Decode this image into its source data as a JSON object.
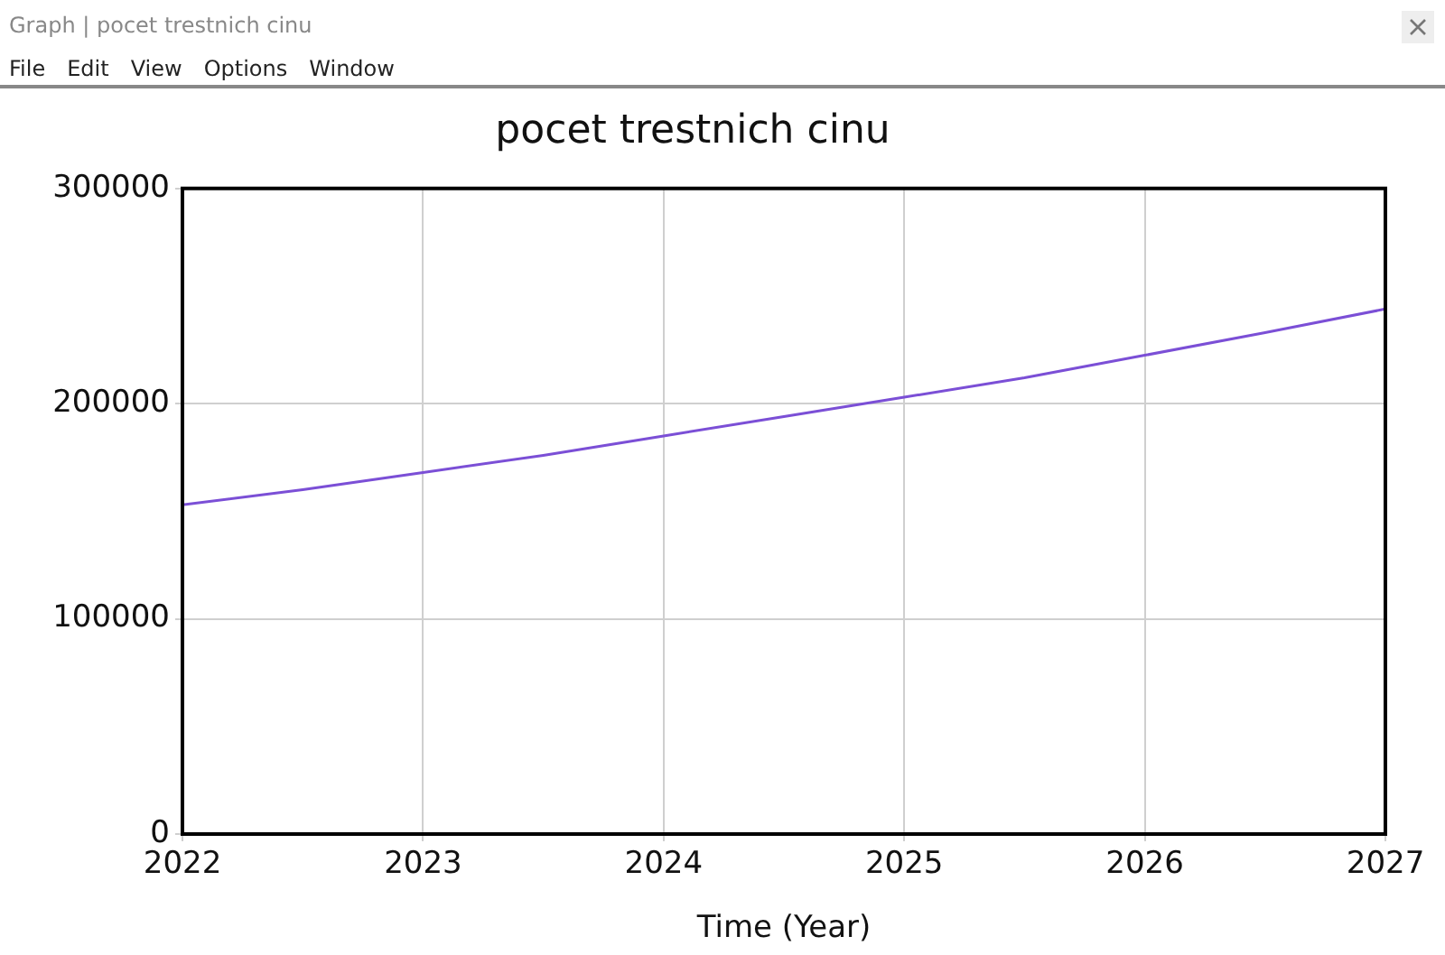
{
  "chart_data": {
    "type": "line",
    "title": "pocet trestnich cinu",
    "xlabel": "Time (Year)",
    "annotations": [
      "Graph | pocet trestnich cinu",
      "File",
      "Edit",
      "View",
      "Options",
      "Window"
    ],
    "x": [
      2022,
      2022.5,
      2023,
      2023.5,
      2024,
      2024.5,
      2025,
      2025.5,
      2026,
      2026.5,
      2027
    ],
    "series": [
      {
        "color": "#7b4fd6",
        "values": [
          153000,
          160000,
          168000,
          176000,
          185000,
          194000,
          203000,
          212000,
          222500,
          233000,
          244000
        ]
      }
    ],
    "xlim": [
      2022,
      2027
    ],
    "xticks": [
      2022,
      2023,
      2024,
      2025,
      2026,
      2027
    ],
    "ylim": [
      0,
      300000
    ],
    "yticks": [
      0,
      100000,
      200000,
      300000
    ],
    "grid": true,
    "legend": false
  }
}
